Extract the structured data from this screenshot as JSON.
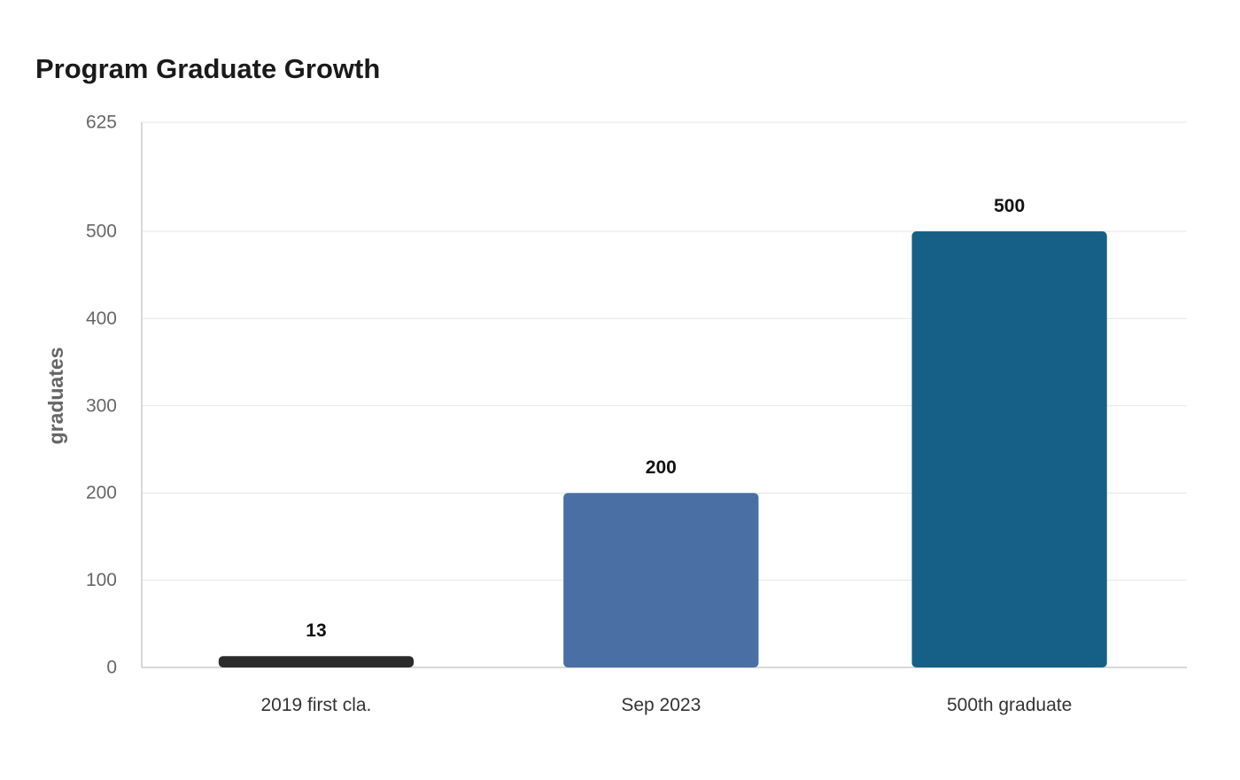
{
  "chart_data": {
    "type": "bar",
    "title": "Program Graduate Growth",
    "xlabel": "",
    "ylabel": "graduates",
    "categories": [
      "2019 first cla.",
      "Sep 2023",
      "500th graduate"
    ],
    "values": [
      13,
      200,
      500
    ],
    "data_labels": [
      "13",
      "200",
      "500"
    ],
    "bar_colors": [
      "#2b2b2b",
      "#4a6fa5",
      "#166088"
    ],
    "ylim": [
      0,
      625
    ],
    "yticks": [
      0,
      100,
      200,
      300,
      400,
      500,
      625
    ],
    "ytick_labels": [
      "0",
      "100",
      "200",
      "300",
      "400",
      "500",
      "625"
    ],
    "grid": true,
    "legend": "none"
  }
}
